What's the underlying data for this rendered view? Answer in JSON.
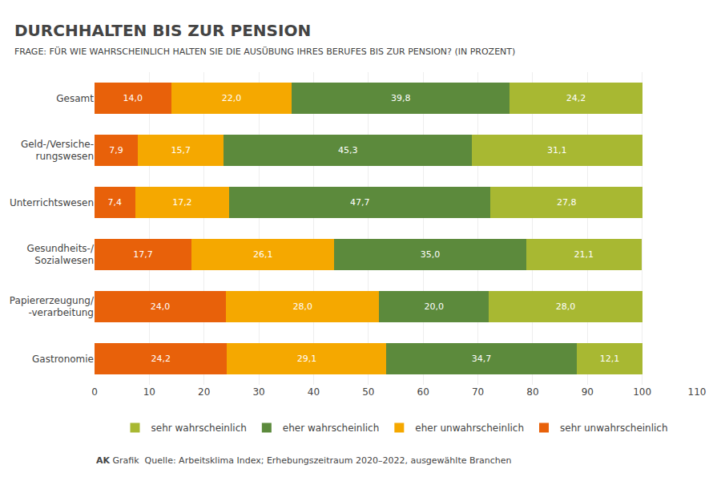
{
  "chart_data": {
    "type": "bar",
    "orientation": "horizontal",
    "stacked": true,
    "title": "DURCHHALTEN BIS ZUR PENSION",
    "subtitle": "FRAGE: FÜR WIE WAHRSCHEINLICH HALTEN SIE DIE AUSÜBUNG IHRES BERUFES BIS ZUR PENSION? (IN PROZENT)",
    "categories": [
      "Gesamt",
      "Geld-/Versiche-\nrungswesen",
      "Unterrichtswesen",
      "Gesundheits-/\nSozialwesen",
      "Papiererzeugung/\n-verarbeitung",
      "Gastronomie"
    ],
    "series": [
      {
        "name": "sehr unwahrscheinlich",
        "color": "#E8610A",
        "values": [
          14.0,
          7.9,
          7.4,
          17.7,
          24.0,
          24.2
        ],
        "value_labels": [
          "14,0",
          "7,9",
          "7,4",
          "17,7",
          "24,0",
          "24,2"
        ]
      },
      {
        "name": "eher unwahrscheinlich",
        "color": "#F5A800",
        "values": [
          22.0,
          15.7,
          17.2,
          26.1,
          28.0,
          29.1
        ],
        "value_labels": [
          "22,0",
          "15,7",
          "17,2",
          "26,1",
          "28,0",
          "29,1"
        ]
      },
      {
        "name": "eher wahrscheinlich",
        "color": "#5C8A3C",
        "values": [
          39.8,
          45.3,
          47.7,
          35.0,
          20.0,
          34.7
        ],
        "value_labels": [
          "39,8",
          "45,3",
          "47,7",
          "35,0",
          "20,0",
          "34,7"
        ]
      },
      {
        "name": "sehr wahrscheinlich",
        "color": "#A8B832",
        "values": [
          24.2,
          31.1,
          27.8,
          21.1,
          28.0,
          12.1
        ],
        "value_labels": [
          "24,2",
          "31,1",
          "27,8",
          "21,1",
          "28,0",
          "12,1"
        ]
      }
    ],
    "xlim": [
      0,
      110
    ],
    "xticks": [
      0,
      10,
      20,
      30,
      40,
      50,
      60,
      70,
      80,
      90,
      100,
      110
    ],
    "grid": true,
    "legend": "bottom",
    "data_labels": true,
    "annotations": [
      "AK",
      "Grafik",
      "Quelle: Arbeitsklima Index; Erhebungszeitraum 2020–2022, ausgewählte Branchen"
    ]
  }
}
